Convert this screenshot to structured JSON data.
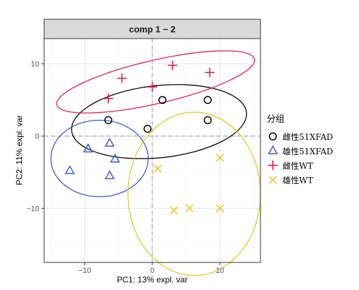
{
  "chart_data": {
    "type": "scatter",
    "title": "comp 1 − 2",
    "xlabel": "PC1: 13% expl. var",
    "ylabel": "PC2: 11% expl. var",
    "xlim": [
      -16,
      16
    ],
    "ylim": [
      -17.5,
      13.5
    ],
    "xticks": [
      -10,
      0,
      10
    ],
    "yticks": [
      -10,
      0,
      10
    ],
    "xtick_labels": [
      "−10",
      "0",
      "10"
    ],
    "ytick_labels": [
      "−10",
      "0",
      "10"
    ],
    "grid": true,
    "legend": {
      "title": "分组",
      "position": "right"
    },
    "series": [
      {
        "name": "雌性51XFAD",
        "marker": "circle",
        "color": "#000000",
        "points": [
          [
            -6.5,
            2.2
          ],
          [
            1.5,
            5.0
          ],
          [
            8.2,
            5.0
          ],
          [
            8.2,
            2.2
          ],
          [
            -0.7,
            1.0
          ]
        ],
        "ellipse": {
          "cx": 1.0,
          "cy": 2.0,
          "rx": 13.0,
          "ry": 5.0,
          "angle": -6
        }
      },
      {
        "name": "雄性51XFAD",
        "marker": "triangle",
        "color": "#3a5bbf",
        "points": [
          [
            -12.2,
            -4.8
          ],
          [
            -9.5,
            -1.8
          ],
          [
            -6.3,
            -1.0
          ],
          [
            -5.5,
            -3.2
          ],
          [
            -6.3,
            -5.5
          ]
        ],
        "ellipse": {
          "cx": -7.8,
          "cy": -3.1,
          "rx": 7.2,
          "ry": 5.3,
          "angle": 0
        }
      },
      {
        "name": "雌性WT",
        "marker": "plus",
        "color": "#d6204f",
        "points": [
          [
            -4.5,
            8.0
          ],
          [
            3.0,
            9.8
          ],
          [
            8.5,
            8.8
          ],
          [
            0.0,
            6.8
          ],
          [
            -6.5,
            5.2
          ]
        ],
        "ellipse": {
          "cx": 0.5,
          "cy": 7.5,
          "rx": 15.0,
          "ry": 3.0,
          "angle": -13
        }
      },
      {
        "name": "雄性WT",
        "marker": "cross",
        "color": "#e0c72c",
        "points": [
          [
            0.8,
            -4.5
          ],
          [
            10.0,
            -3.0
          ],
          [
            3.2,
            -10.3
          ],
          [
            5.5,
            -10.0
          ],
          [
            10.0,
            -10.0
          ]
        ],
        "ellipse": {
          "cx": 6.2,
          "cy": -8.0,
          "rx": 9.8,
          "ry": 11.3,
          "angle": 0
        }
      }
    ]
  }
}
